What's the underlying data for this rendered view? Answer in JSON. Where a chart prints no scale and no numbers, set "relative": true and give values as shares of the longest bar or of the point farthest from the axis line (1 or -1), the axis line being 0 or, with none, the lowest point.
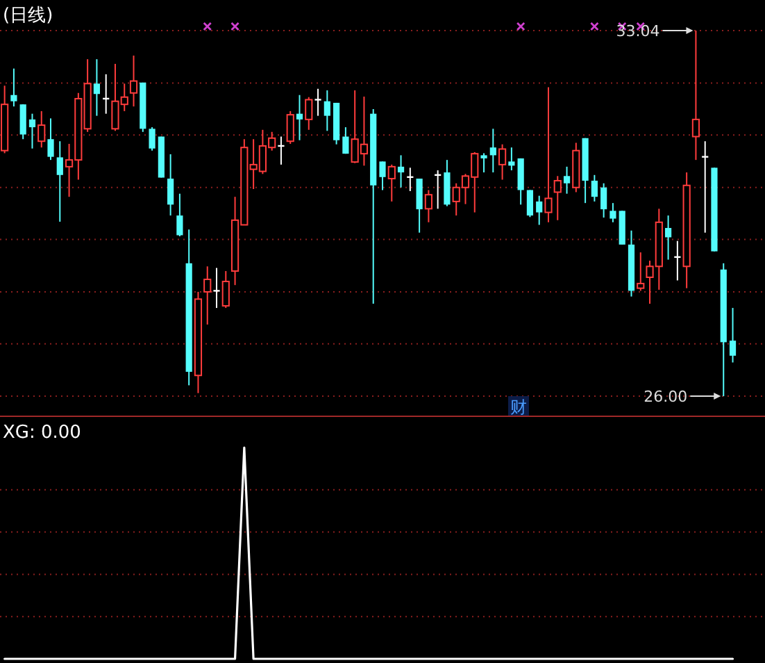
{
  "chart_data": [
    {
      "type": "candlestick",
      "title": "(日线)",
      "categories": [
        null,
        null,
        null,
        null,
        null,
        null,
        null,
        null,
        null,
        null,
        null,
        null,
        null,
        null,
        null,
        null,
        null,
        null,
        null,
        null,
        null,
        null,
        null,
        null,
        null,
        null,
        null,
        null,
        null,
        null,
        null,
        null,
        null,
        null,
        null,
        null,
        null,
        null,
        null,
        null,
        null,
        null,
        null,
        null,
        null,
        null,
        null,
        null,
        null,
        null,
        null,
        null,
        null,
        null,
        null,
        null,
        null,
        null,
        null,
        null,
        null,
        null,
        null,
        null,
        null,
        null,
        null,
        null,
        null,
        null,
        null,
        null,
        null,
        null,
        null,
        null,
        null,
        null,
        null,
        null
      ],
      "ohlc": [
        [
          30.73,
          31.98,
          30.68,
          31.62
        ],
        [
          31.8,
          32.31,
          31.58,
          31.68
        ],
        [
          31.62,
          31.62,
          30.95,
          31.04
        ],
        [
          31.33,
          31.44,
          30.77,
          31.18
        ],
        [
          30.91,
          31.49,
          30.79,
          31.22
        ],
        [
          30.95,
          31.35,
          30.55,
          30.61
        ],
        [
          30.6,
          30.91,
          29.36,
          30.26
        ],
        [
          30.42,
          30.86,
          29.84,
          30.55
        ],
        [
          30.55,
          31.84,
          30.17,
          31.73
        ],
        [
          31.15,
          32.49,
          31.09,
          32.02
        ],
        [
          32.02,
          32.49,
          31.4,
          31.82
        ],
        [
          31.73,
          32.2,
          31.44,
          31.73
        ],
        [
          31.15,
          32.4,
          31.11,
          31.68
        ],
        [
          31.62,
          32.02,
          31.49,
          31.76
        ],
        [
          31.84,
          32.56,
          31.58,
          32.07
        ],
        [
          32.04,
          32.04,
          31.09,
          31.15
        ],
        [
          31.15,
          31.18,
          30.73,
          30.77
        ],
        [
          31.0,
          31.0,
          30.21,
          30.21
        ],
        [
          30.19,
          30.66,
          29.48,
          29.69
        ],
        [
          29.48,
          29.9,
          29.08,
          29.1
        ],
        [
          28.56,
          29.21,
          26.21,
          26.47
        ],
        [
          26.4,
          28.01,
          26.06,
          27.87
        ],
        [
          28.01,
          28.5,
          27.38,
          28.25
        ],
        [
          28.03,
          28.47,
          27.7,
          28.03
        ],
        [
          27.74,
          28.41,
          27.7,
          28.21
        ],
        [
          28.41,
          29.84,
          28.14,
          29.39
        ],
        [
          29.3,
          30.95,
          29.3,
          30.79
        ],
        [
          30.37,
          30.95,
          29.99,
          30.46
        ],
        [
          30.33,
          31.13,
          30.28,
          30.82
        ],
        [
          30.79,
          31.09,
          30.73,
          30.97
        ],
        [
          30.82,
          31.0,
          30.46,
          30.82
        ],
        [
          30.91,
          31.49,
          30.86,
          31.42
        ],
        [
          31.44,
          31.8,
          30.93,
          31.33
        ],
        [
          31.33,
          31.76,
          31.13,
          31.71
        ],
        [
          31.71,
          31.92,
          31.4,
          31.71
        ],
        [
          31.68,
          31.89,
          31.11,
          31.4
        ],
        [
          31.65,
          31.65,
          30.85,
          30.93
        ],
        [
          31.0,
          31.18,
          30.67,
          30.67
        ],
        [
          30.51,
          31.89,
          30.49,
          30.95
        ],
        [
          30.67,
          31.77,
          30.44,
          30.85
        ],
        [
          31.44,
          31.53,
          27.78,
          30.06
        ],
        [
          30.52,
          30.52,
          29.97,
          30.22
        ],
        [
          30.19,
          30.46,
          29.75,
          30.42
        ],
        [
          30.42,
          30.64,
          30.02,
          30.31
        ],
        [
          30.22,
          30.4,
          29.95,
          30.22
        ],
        [
          30.19,
          30.19,
          29.15,
          29.6
        ],
        [
          29.61,
          29.97,
          29.35,
          29.88
        ],
        [
          30.26,
          30.35,
          29.61,
          30.26
        ],
        [
          30.31,
          30.55,
          29.66,
          29.69
        ],
        [
          29.75,
          30.1,
          29.48,
          30.02
        ],
        [
          30.02,
          30.28,
          29.7,
          30.24
        ],
        [
          30.22,
          30.7,
          29.54,
          30.67
        ],
        [
          30.64,
          30.68,
          30.31,
          30.58
        ],
        [
          30.79,
          31.15,
          30.31,
          30.64
        ],
        [
          30.46,
          30.85,
          30.17,
          30.76
        ],
        [
          30.52,
          30.79,
          30.35,
          30.44
        ],
        [
          30.58,
          30.58,
          29.69,
          29.97
        ],
        [
          29.97,
          29.97,
          29.45,
          29.48
        ],
        [
          29.75,
          29.86,
          29.3,
          29.54
        ],
        [
          29.54,
          31.95,
          29.35,
          29.81
        ],
        [
          29.93,
          30.24,
          29.39,
          30.15
        ],
        [
          30.24,
          30.42,
          29.9,
          30.1
        ],
        [
          30.02,
          30.88,
          29.93,
          30.73
        ],
        [
          30.97,
          30.97,
          29.72,
          30.15
        ],
        [
          30.15,
          30.26,
          29.75,
          29.84
        ],
        [
          30.02,
          30.1,
          29.44,
          29.6
        ],
        [
          29.57,
          29.72,
          29.35,
          29.42
        ],
        [
          29.57,
          29.57,
          28.92,
          28.92
        ],
        [
          28.92,
          29.19,
          27.92,
          28.03
        ],
        [
          28.08,
          28.77,
          28.03,
          28.17
        ],
        [
          28.29,
          28.61,
          27.78,
          28.5
        ],
        [
          28.5,
          29.61,
          28.05,
          29.35
        ],
        [
          29.24,
          29.48,
          28.63,
          29.06
        ],
        [
          28.68,
          28.99,
          28.23,
          28.68
        ],
        [
          28.5,
          30.31,
          28.08,
          30.06
        ],
        [
          31.0,
          33.04,
          30.55,
          31.33
        ],
        [
          30.61,
          30.91,
          29.15,
          30.61
        ],
        [
          30.4,
          30.4,
          28.79,
          28.79
        ],
        [
          28.44,
          28.56,
          26.0,
          27.04
        ],
        [
          27.07,
          27.7,
          26.65,
          26.78
        ]
      ],
      "colors": [
        "#ff3c3c",
        "#54fcfc",
        "#54fcfc",
        "#54fcfc",
        "#ff3c3c",
        "#54fcfc",
        "#54fcfc",
        "#ff3c3c",
        "#ff3c3c",
        "#ff3c3c",
        "#54fcfc",
        "#ffffff",
        "#ff3c3c",
        "#ff3c3c",
        "#ff3c3c",
        "#54fcfc",
        "#54fcfc",
        "#54fcfc",
        "#54fcfc",
        "#54fcfc",
        "#54fcfc",
        "#ff3c3c",
        "#ff3c3c",
        "#ffffff",
        "#ff3c3c",
        "#ff3c3c",
        "#ff3c3c",
        "#ff3c3c",
        "#ff3c3c",
        "#ff3c3c",
        "#ffffff",
        "#ff3c3c",
        "#54fcfc",
        "#ff3c3c",
        "#ffffff",
        "#54fcfc",
        "#54fcfc",
        "#54fcfc",
        "#ff3c3c",
        "#ff3c3c",
        "#54fcfc",
        "#54fcfc",
        "#ff3c3c",
        "#54fcfc",
        "#ffffff",
        "#54fcfc",
        "#ff3c3c",
        "#ffffff",
        "#54fcfc",
        "#ff3c3c",
        "#ff3c3c",
        "#ff3c3c",
        "#54fcfc",
        "#54fcfc",
        "#ff3c3c",
        "#54fcfc",
        "#54fcfc",
        "#54fcfc",
        "#54fcfc",
        "#ff3c3c",
        "#ff3c3c",
        "#54fcfc",
        "#ff3c3c",
        "#54fcfc",
        "#54fcfc",
        "#54fcfc",
        "#54fcfc",
        "#54fcfc",
        "#54fcfc",
        "#ff3c3c",
        "#ff3c3c",
        "#ff3c3c",
        "#54fcfc",
        "#ffffff",
        "#ff3c3c",
        "#ff3c3c",
        "#ffffff",
        "#54fcfc",
        "#54fcfc",
        "#54fcfc"
      ],
      "series": [
        {
          "type": "scatter",
          "marker": "cross",
          "color": "#d040d0",
          "values": [
            null,
            null,
            null,
            null,
            null,
            null,
            null,
            null,
            null,
            null,
            null,
            null,
            null,
            null,
            null,
            null,
            null,
            null,
            null,
            null,
            null,
            null,
            33.12,
            null,
            null,
            33.12,
            null,
            null,
            null,
            null,
            null,
            null,
            null,
            null,
            null,
            null,
            null,
            null,
            null,
            null,
            null,
            null,
            null,
            null,
            null,
            null,
            null,
            null,
            null,
            null,
            null,
            null,
            null,
            null,
            null,
            null,
            33.12,
            null,
            null,
            null,
            null,
            null,
            null,
            null,
            33.12,
            null,
            null,
            33.12,
            null,
            33.12,
            null,
            null,
            null,
            null,
            null,
            null,
            null,
            null,
            null,
            null
          ]
        }
      ],
      "ylim": [
        25.6,
        33.63
      ],
      "yticks": [
        {
          "value": 26.0,
          "label": null
        },
        {
          "value": 27.01,
          "label": null
        },
        {
          "value": 28.01,
          "label": null
        },
        {
          "value": 29.02,
          "label": null
        },
        {
          "value": 30.02,
          "label": null
        },
        {
          "value": 31.03,
          "label": null
        },
        {
          "value": 32.03,
          "label": null
        },
        {
          "value": 33.04,
          "label": null
        }
      ],
      "grid": "y",
      "annotations": [
        "33.04",
        "26.00",
        "财"
      ]
    },
    {
      "type": "line",
      "title": "XG: 0.00",
      "relative": true,
      "ref_lines": [
        {
          "axis": "y",
          "value": 0.2,
          "color": "#8a1e1e",
          "line_style": "dotted"
        },
        {
          "axis": "y",
          "value": 0.4,
          "color": "#8a1e1e",
          "line_style": "dotted"
        },
        {
          "axis": "y",
          "value": 0.6,
          "color": "#8a1e1e",
          "line_style": "dotted"
        },
        {
          "axis": "y",
          "value": 0.8,
          "color": "#8a1e1e",
          "line_style": "dotted"
        }
      ],
      "categories": [
        null,
        null,
        null,
        null,
        null,
        null,
        null,
        null,
        null,
        null,
        null,
        null,
        null,
        null,
        null,
        null,
        null,
        null,
        null,
        null,
        null,
        null,
        null,
        null,
        null,
        null,
        null,
        null,
        null,
        null,
        null,
        null,
        null,
        null,
        null,
        null,
        null,
        null,
        null,
        null,
        null,
        null,
        null,
        null,
        null,
        null,
        null,
        null,
        null,
        null,
        null,
        null,
        null,
        null,
        null,
        null,
        null,
        null,
        null,
        null,
        null,
        null,
        null,
        null,
        null,
        null,
        null,
        null,
        null,
        null,
        null,
        null,
        null,
        null,
        null,
        null,
        null,
        null,
        null,
        null
      ],
      "series": [
        {
          "color": "#ffffff",
          "values": [
            0,
            0,
            0,
            0,
            0,
            0,
            0,
            0,
            0,
            0,
            0,
            0,
            0,
            0,
            0,
            0,
            0,
            0,
            0,
            0,
            0,
            0,
            0,
            0,
            0,
            0,
            1,
            0,
            0,
            0,
            0,
            0,
            0,
            0,
            0,
            0,
            0,
            0,
            0,
            0,
            0,
            0,
            0,
            0,
            0,
            0,
            0,
            0,
            0,
            0,
            0,
            0,
            0,
            0,
            0,
            0,
            0,
            0,
            0,
            0,
            0,
            0,
            0,
            0,
            0,
            0,
            0,
            0,
            0,
            0,
            0,
            0,
            0,
            0,
            0,
            0,
            0,
            0,
            0,
            0
          ]
        }
      ]
    }
  ]
}
